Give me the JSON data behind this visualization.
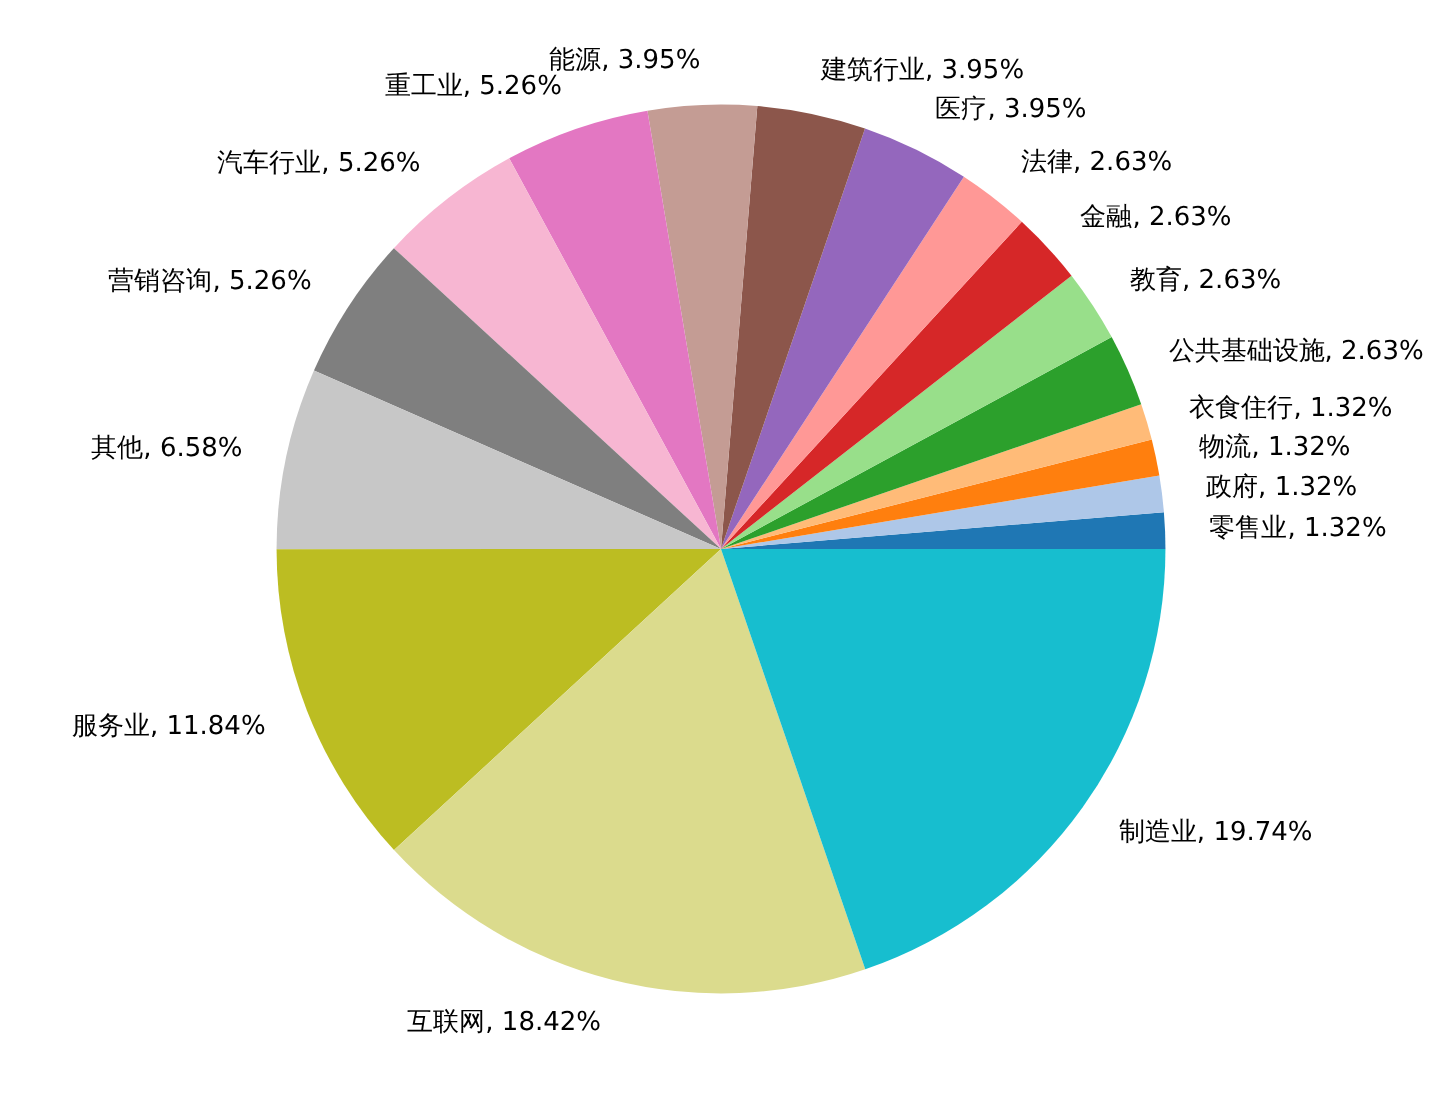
{
  "chart_data": {
    "type": "pie",
    "categories": [
      "零售业",
      "政府",
      "物流",
      "衣食住行",
      "公共基础设施",
      "教育",
      "金融",
      "法律",
      "医疗",
      "建筑行业",
      "能源",
      "重工业",
      "汽车行业",
      "营销咨询",
      "其他",
      "服务业",
      "互联网",
      "制造业"
    ],
    "values": [
      1.32,
      1.32,
      1.32,
      1.32,
      2.63,
      2.63,
      2.63,
      2.63,
      3.95,
      3.95,
      3.95,
      5.26,
      5.26,
      5.26,
      6.58,
      11.84,
      18.42,
      19.74
    ],
    "value_labels": [
      "1.32%",
      "1.32%",
      "1.32%",
      "1.32%",
      "2.63%",
      "2.63%",
      "2.63%",
      "2.63%",
      "3.95%",
      "3.95%",
      "3.95%",
      "5.26%",
      "5.26%",
      "5.26%",
      "6.58%",
      "11.84%",
      "18.42%",
      "19.74%"
    ],
    "colors": [
      "#1f77b4",
      "#aec7e8",
      "#ff7f0e",
      "#ffbb78",
      "#2ca02c",
      "#98df8a",
      "#d62728",
      "#ff9896",
      "#9467bd",
      "#8c564b",
      "#c49c94",
      "#e377c2",
      "#f7b6d2",
      "#7f7f7f",
      "#c7c7c7",
      "#bcbd22",
      "#dbdb8d",
      "#17becf"
    ]
  }
}
